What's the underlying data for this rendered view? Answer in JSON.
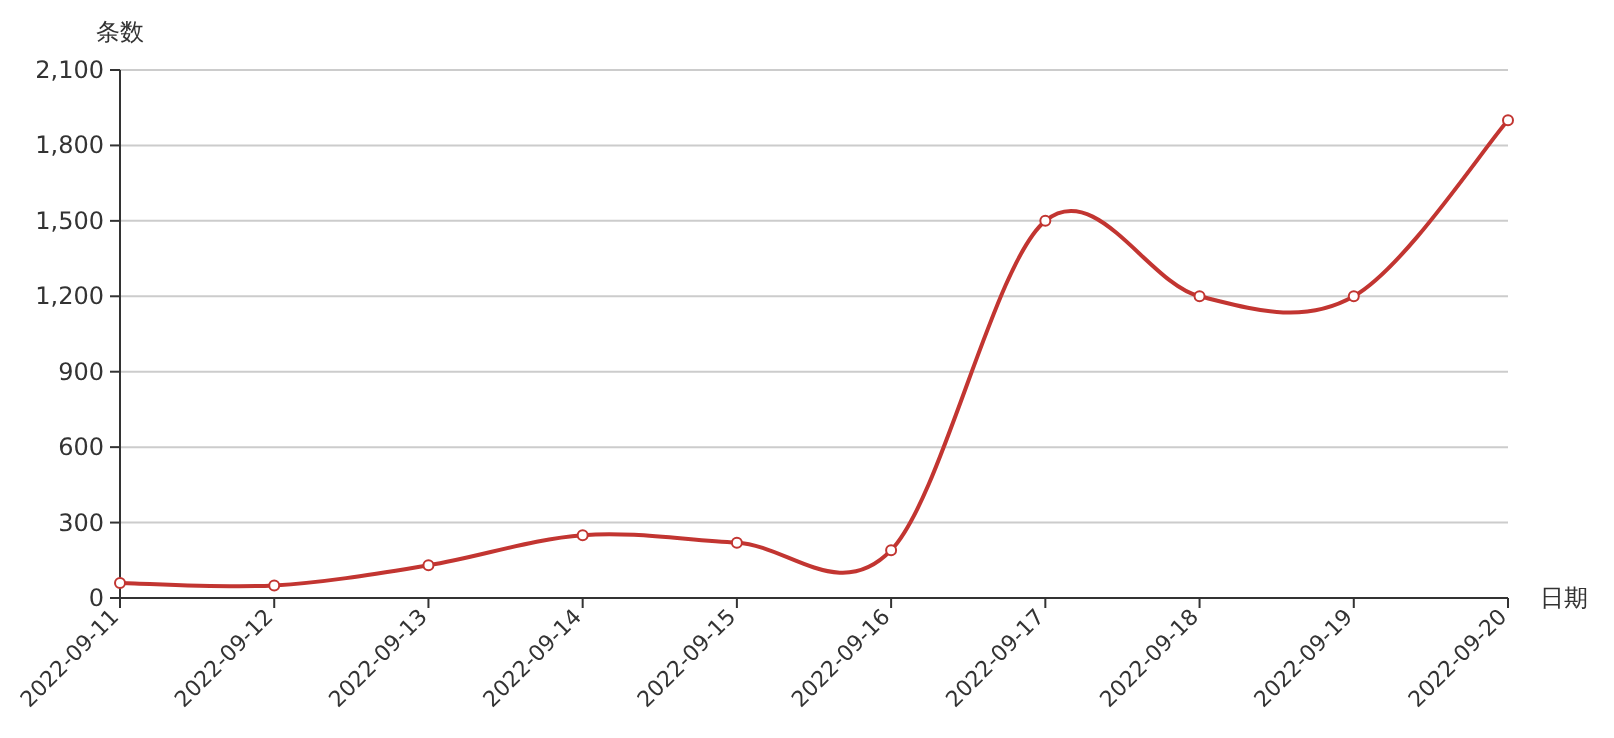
{
  "chart_data": {
    "type": "line",
    "xlabel": "日期",
    "ylabel": "条数",
    "categories": [
      "2022-09-11",
      "2022-09-12",
      "2022-09-13",
      "2022-09-14",
      "2022-09-15",
      "2022-09-16",
      "2022-09-17",
      "2022-09-18",
      "2022-09-19",
      "2022-09-20"
    ],
    "series": [
      {
        "color": "#c23531",
        "values": [
          60,
          50,
          130,
          250,
          220,
          190,
          1500,
          1200,
          1200,
          1900
        ]
      }
    ],
    "ylim": [
      0,
      2100
    ],
    "yticks": [
      0,
      {
        "value": 300,
        "label": "300"
      },
      {
        "value": 600,
        "label": "600"
      },
      {
        "value": 900,
        "label": "900"
      },
      {
        "value": 1200,
        "label": "1,200"
      },
      {
        "value": 1500,
        "label": "1,500"
      },
      {
        "value": 1800,
        "label": "1,800"
      },
      {
        "value": 2100,
        "label": "2,100"
      }
    ],
    "grid": "y",
    "marker": "circle",
    "line_style": "solid"
  }
}
